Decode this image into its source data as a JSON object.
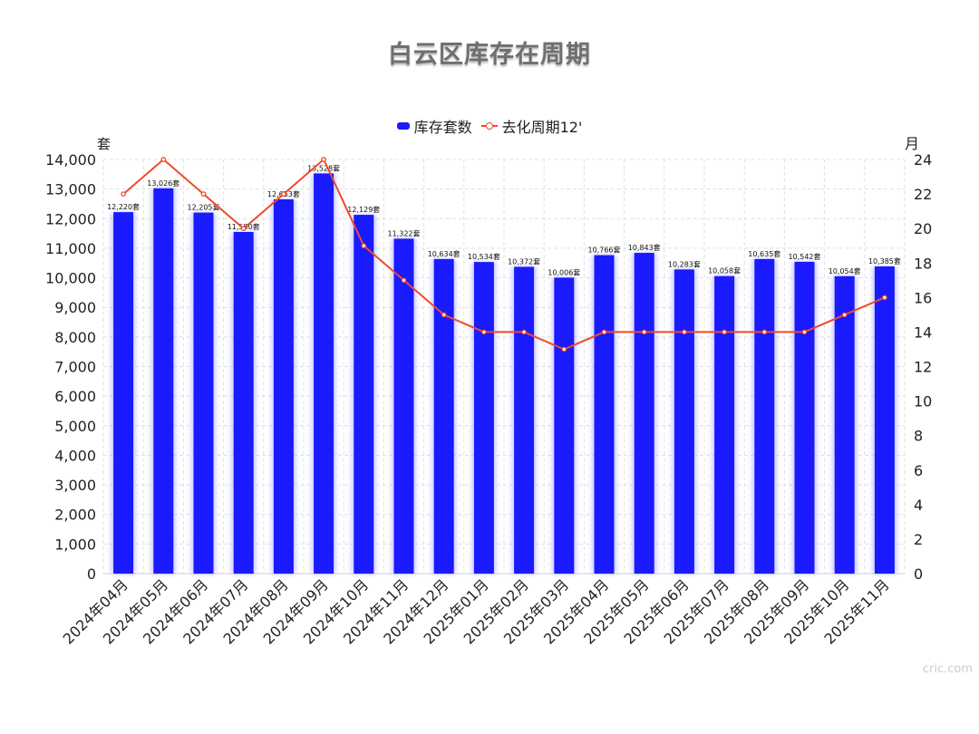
{
  "title": "白云区库存在周期",
  "legend": {
    "bar_label": "库存套数",
    "line_label": "去化周期12'"
  },
  "units": {
    "left": "套",
    "right": "月"
  },
  "watermark": "cric.com",
  "colors": {
    "bar": "#1a1aff",
    "line": "#f04a2a",
    "grid": "#dfe1e6",
    "text": "#222222"
  },
  "chart_data": {
    "type": "bar",
    "title": "白云区库存在周期",
    "categories": [
      "2024年04月",
      "2024年05月",
      "2024年06月",
      "2024年07月",
      "2024年08月",
      "2024年09月",
      "2024年10月",
      "2024年11月",
      "2024年12月",
      "2025年01月",
      "2025年02月",
      "2025年03月",
      "2025年04月",
      "2025年05月",
      "2025年06月",
      "2025年07月",
      "2025年08月",
      "2025年09月",
      "2025年10月",
      "2025年11月"
    ],
    "series": [
      {
        "name": "库存套数",
        "type": "bar",
        "axis": "left",
        "values": [
          12220,
          13026,
          12205,
          11550,
          12653,
          13528,
          12129,
          11322,
          10634,
          10534,
          10372,
          10006,
          10766,
          10843,
          10283,
          10058,
          10635,
          10542,
          10054,
          10385
        ],
        "labels": [
          "12,220套",
          "13,026套",
          "12,205套",
          "11,550套",
          "12,653套",
          "13,528套",
          "12,129套",
          "11,322套",
          "10,634套",
          "10,534套",
          "10,372套",
          "10,006套",
          "10,766套",
          "10,843套",
          "10,283套",
          "10,058套",
          "10,635套",
          "10,542套",
          "10,054套",
          "10,385套"
        ]
      },
      {
        "name": "去化周期12'",
        "type": "line",
        "axis": "right",
        "values": [
          22,
          24,
          22,
          20,
          22,
          24,
          19,
          17,
          15,
          14,
          14,
          13,
          14,
          14,
          14,
          14,
          14,
          14,
          15,
          16
        ]
      }
    ],
    "yleft": {
      "label": "套",
      "min": 0,
      "max": 14000,
      "step": 1000
    },
    "yright": {
      "label": "月",
      "min": 0,
      "max": 24,
      "step": 2
    },
    "grid": true,
    "legend_position": "top-center"
  }
}
